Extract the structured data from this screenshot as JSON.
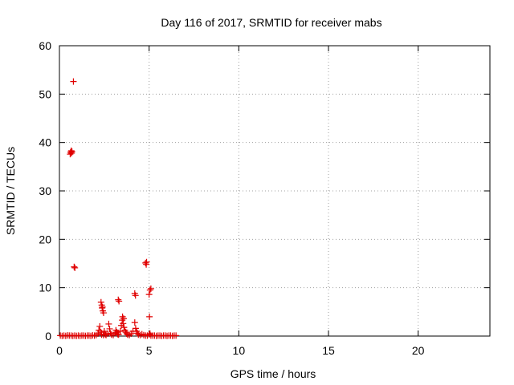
{
  "chart_data": {
    "type": "scatter",
    "title": "Day 116 of 2017, SRMTID for receiver mabs",
    "xlabel": "GPS time / hours",
    "ylabel": "SRMTID / TECUs",
    "xlim": [
      0,
      24
    ],
    "ylim": [
      0,
      60
    ],
    "xticks": [
      0,
      5,
      10,
      15,
      20
    ],
    "yticks": [
      0,
      10,
      20,
      30,
      40,
      50,
      60
    ],
    "xtick_labels": [
      "0",
      "5",
      "10",
      "15",
      "20"
    ],
    "ytick_labels": [
      "0",
      "10",
      "20",
      "30",
      "40",
      "50",
      "60"
    ],
    "grid": true,
    "marker": "+",
    "series": [
      {
        "name": "SRMTID",
        "color": "#e00000",
        "points": [
          [
            0.05,
            0.1
          ],
          [
            0.15,
            0.05
          ],
          [
            0.25,
            0.1
          ],
          [
            0.35,
            0.05
          ],
          [
            0.45,
            0.15
          ],
          [
            0.55,
            0.1
          ],
          [
            0.65,
            0.1
          ],
          [
            0.75,
            0.05
          ],
          [
            0.85,
            0.1
          ],
          [
            0.95,
            0.05
          ],
          [
            1.05,
            0.1
          ],
          [
            1.15,
            0.05
          ],
          [
            1.25,
            0.1
          ],
          [
            1.35,
            0.1
          ],
          [
            1.45,
            0.05
          ],
          [
            1.55,
            0.1
          ],
          [
            1.65,
            0.1
          ],
          [
            1.75,
            0.05
          ],
          [
            1.85,
            0.15
          ],
          [
            1.95,
            0.1
          ],
          [
            2.05,
            0.2
          ],
          [
            2.15,
            0.5
          ],
          [
            2.2,
            1.2
          ],
          [
            2.25,
            2.0
          ],
          [
            2.3,
            0.8
          ],
          [
            2.35,
            0.3
          ],
          [
            2.45,
            0.2
          ],
          [
            2.5,
            1.0
          ],
          [
            2.55,
            0.4
          ],
          [
            2.6,
            0.2
          ],
          [
            2.7,
            0.5
          ],
          [
            2.75,
            2.5
          ],
          [
            2.8,
            1.5
          ],
          [
            2.85,
            0.6
          ],
          [
            2.9,
            0.3
          ],
          [
            3.0,
            0.2
          ],
          [
            3.1,
            0.6
          ],
          [
            3.15,
            1.2
          ],
          [
            3.2,
            0.8
          ],
          [
            3.25,
            0.4
          ],
          [
            3.3,
            0.3
          ],
          [
            3.4,
            1.0
          ],
          [
            3.45,
            2.2
          ],
          [
            3.5,
            3.3
          ],
          [
            3.55,
            2.6
          ],
          [
            3.6,
            1.8
          ],
          [
            3.65,
            1.2
          ],
          [
            3.7,
            0.8
          ],
          [
            3.75,
            0.5
          ],
          [
            3.8,
            0.3
          ],
          [
            3.9,
            0.2
          ],
          [
            4.0,
            0.5
          ],
          [
            4.1,
            1.0
          ],
          [
            4.2,
            2.8
          ],
          [
            4.25,
            1.6
          ],
          [
            4.3,
            1.0
          ],
          [
            4.35,
            0.6
          ],
          [
            4.4,
            0.3
          ],
          [
            4.5,
            0.2
          ],
          [
            4.6,
            0.4
          ],
          [
            4.7,
            0.2
          ],
          [
            4.8,
            0.1
          ],
          [
            4.9,
            0.1
          ],
          [
            5.0,
            0.3
          ],
          [
            5.05,
            0.5
          ],
          [
            5.1,
            0.1
          ],
          [
            5.2,
            0.1
          ],
          [
            5.3,
            0.1
          ],
          [
            5.4,
            0.05
          ],
          [
            5.5,
            0.1
          ],
          [
            5.6,
            0.1
          ],
          [
            5.7,
            0.05
          ],
          [
            5.8,
            0.1
          ],
          [
            5.9,
            0.1
          ],
          [
            6.0,
            0.05
          ],
          [
            6.1,
            0.1
          ],
          [
            6.2,
            0.1
          ],
          [
            6.3,
            0.05
          ],
          [
            6.4,
            0.1
          ],
          [
            6.5,
            0.1
          ],
          [
            2.32,
            7.0
          ],
          [
            2.36,
            6.4
          ],
          [
            2.38,
            5.8
          ],
          [
            2.42,
            5.2
          ],
          [
            2.46,
            4.8
          ],
          [
            2.4,
            6.0
          ],
          [
            3.28,
            7.5
          ],
          [
            3.32,
            7.2
          ],
          [
            3.52,
            4.0
          ],
          [
            3.58,
            3.6
          ],
          [
            4.2,
            8.8
          ],
          [
            4.24,
            8.4
          ],
          [
            4.8,
            15.1
          ],
          [
            4.84,
            14.8
          ],
          [
            4.86,
            15.3
          ],
          [
            5.05,
            9.5
          ],
          [
            5.1,
            9.8
          ],
          [
            5.0,
            8.6
          ],
          [
            5.02,
            4.0
          ],
          [
            0.6,
            37.6
          ],
          [
            0.62,
            38.0
          ],
          [
            0.66,
            38.3
          ],
          [
            0.68,
            37.8
          ],
          [
            0.7,
            38.1
          ],
          [
            0.78,
            52.6
          ],
          [
            0.82,
            14.3
          ],
          [
            0.86,
            14.1
          ]
        ]
      }
    ]
  }
}
